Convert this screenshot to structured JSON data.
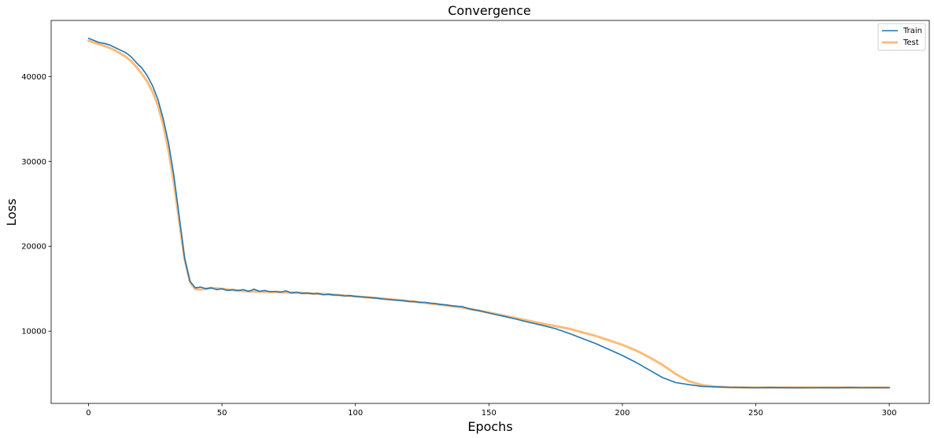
{
  "chart_data": {
    "type": "line",
    "title": "Convergence",
    "xlabel": "Epochs",
    "ylabel": "Loss",
    "xlim": [
      -14,
      315
    ],
    "ylim": [
      1500,
      46600
    ],
    "xticks": [
      0,
      50,
      100,
      150,
      200,
      250,
      300
    ],
    "yticks": [
      10000,
      20000,
      30000,
      40000
    ],
    "legend_position": "top-right",
    "grid": false,
    "series": [
      {
        "name": "Train",
        "color": "#1f77b4",
        "x": [
          0,
          2,
          4,
          6,
          8,
          10,
          12,
          14,
          16,
          18,
          20,
          22,
          24,
          26,
          28,
          30,
          32,
          34,
          36,
          38,
          40,
          42,
          44,
          46,
          48,
          50,
          52,
          54,
          56,
          58,
          60,
          62,
          64,
          66,
          68,
          70,
          72,
          74,
          76,
          78,
          80,
          82,
          84,
          86,
          88,
          90,
          92,
          94,
          96,
          98,
          100,
          102,
          104,
          106,
          108,
          110,
          112,
          114,
          116,
          118,
          120,
          122,
          124,
          126,
          128,
          130,
          132,
          134,
          136,
          138,
          140,
          142,
          144,
          146,
          148,
          150,
          155,
          160,
          165,
          170,
          175,
          180,
          185,
          190,
          195,
          200,
          205,
          210,
          215,
          220,
          225,
          230,
          235,
          240,
          245,
          250,
          255,
          260,
          265,
          270,
          275,
          280,
          285,
          290,
          295,
          300
        ],
        "y": [
          44500,
          44250,
          44000,
          43900,
          43700,
          43400,
          43100,
          42800,
          42300,
          41600,
          41000,
          40100,
          38900,
          37300,
          35000,
          32100,
          28300,
          23500,
          18600,
          15900,
          15100,
          15200,
          15000,
          15100,
          14900,
          15000,
          14800,
          14900,
          14800,
          14900,
          14700,
          14950,
          14700,
          14800,
          14650,
          14700,
          14600,
          14750,
          14500,
          14600,
          14450,
          14500,
          14400,
          14450,
          14300,
          14350,
          14250,
          14250,
          14150,
          14200,
          14100,
          14050,
          14000,
          13950,
          13900,
          13800,
          13750,
          13700,
          13650,
          13600,
          13500,
          13500,
          13400,
          13400,
          13300,
          13250,
          13150,
          13100,
          13000,
          12950,
          12900,
          12700,
          12550,
          12450,
          12300,
          12150,
          11800,
          11450,
          11050,
          10700,
          10300,
          9750,
          9150,
          8550,
          7850,
          7150,
          6350,
          5450,
          4550,
          3950,
          3700,
          3500,
          3450,
          3400,
          3380,
          3350,
          3380,
          3360,
          3340,
          3350,
          3360,
          3340,
          3380,
          3350,
          3360,
          3350
        ]
      },
      {
        "name": "Test",
        "color": "#ffbb78",
        "x": [
          0,
          2,
          4,
          6,
          8,
          10,
          12,
          14,
          16,
          18,
          20,
          22,
          24,
          26,
          28,
          30,
          32,
          34,
          36,
          38,
          40,
          42,
          44,
          46,
          48,
          50,
          55,
          60,
          70,
          80,
          90,
          100,
          110,
          120,
          130,
          140,
          150,
          160,
          170,
          180,
          190,
          200,
          205,
          210,
          215,
          220,
          225,
          230,
          235,
          240,
          245,
          250,
          260,
          270,
          280,
          290,
          300
        ],
        "y": [
          44200,
          44000,
          43800,
          43600,
          43350,
          43050,
          42700,
          42300,
          41800,
          41100,
          40300,
          39400,
          38200,
          36600,
          34300,
          31200,
          27500,
          22900,
          18500,
          15800,
          14950,
          14900,
          15000,
          15100,
          15050,
          15000,
          14800,
          14700,
          14600,
          14500,
          14350,
          14100,
          13850,
          13550,
          13200,
          12800,
          12200,
          11550,
          10900,
          10300,
          9450,
          8400,
          7750,
          6950,
          6050,
          4950,
          4100,
          3650,
          3470,
          3400,
          3380,
          3360,
          3360,
          3360,
          3360,
          3360,
          3360
        ]
      }
    ]
  }
}
